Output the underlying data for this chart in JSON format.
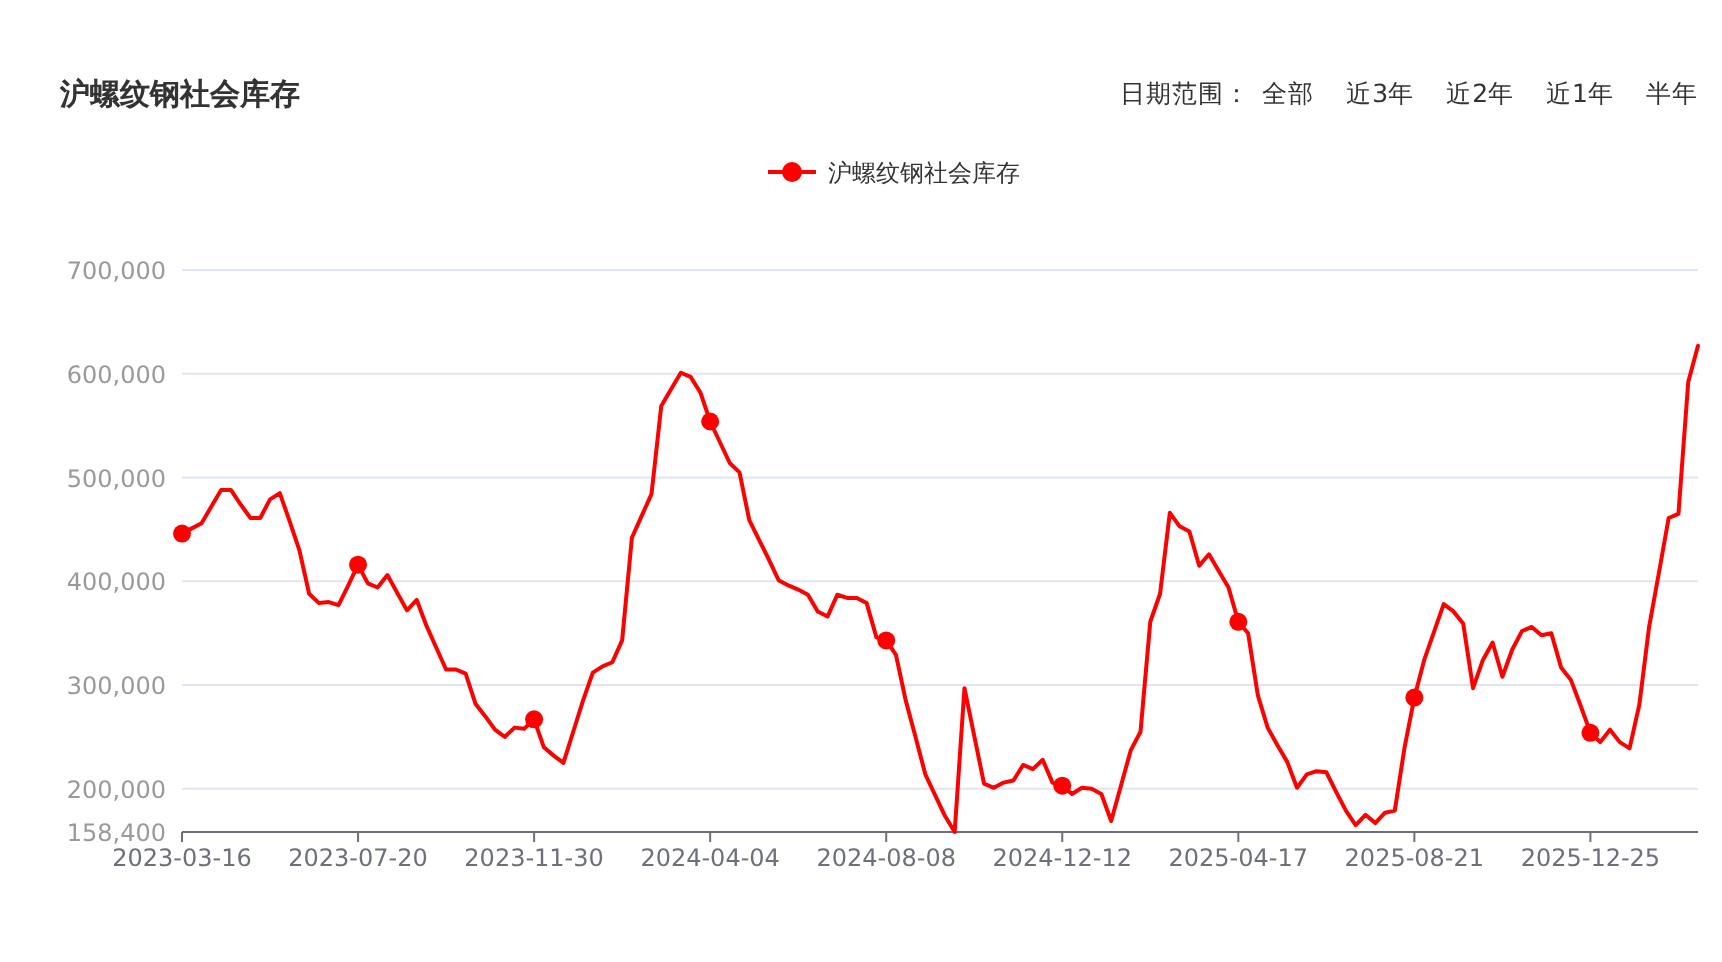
{
  "chart_data": {
    "type": "line",
    "title": "沪螺纹钢社会库存",
    "annotations": [
      "日期范围：",
      "全部",
      "近3年",
      "近2年",
      "近1年",
      "半年"
    ],
    "categories": [
      "2023-03-16",
      null,
      null,
      null,
      null,
      null,
      null,
      null,
      null,
      null,
      null,
      null,
      null,
      null,
      null,
      null,
      null,
      null,
      "2023-07-20",
      null,
      null,
      null,
      null,
      null,
      null,
      null,
      null,
      null,
      null,
      null,
      null,
      null,
      null,
      null,
      null,
      null,
      "2023-11-30",
      null,
      null,
      null,
      null,
      null,
      null,
      null,
      null,
      null,
      null,
      null,
      null,
      null,
      null,
      null,
      null,
      null,
      "2024-04-04",
      null,
      null,
      null,
      null,
      null,
      null,
      null,
      null,
      null,
      null,
      null,
      null,
      null,
      null,
      null,
      null,
      null,
      "2024-08-08",
      null,
      null,
      null,
      null,
      null,
      null,
      null,
      null,
      null,
      null,
      null,
      null,
      null,
      null,
      null,
      null,
      null,
      "2024-12-12",
      null,
      null,
      null,
      null,
      null,
      null,
      null,
      null,
      null,
      null,
      null,
      null,
      null,
      null,
      null,
      null,
      null,
      "2025-04-17",
      null,
      null,
      null,
      null,
      null,
      null,
      null,
      null,
      null,
      null,
      null,
      null,
      null,
      null,
      null,
      null,
      null,
      "2025-08-21",
      null,
      null,
      null,
      null,
      null,
      null,
      null,
      null,
      null,
      null,
      null,
      null,
      null,
      null,
      null,
      null,
      null,
      "2025-12-25",
      null,
      null,
      null,
      null,
      null,
      null,
      null,
      null,
      null,
      null,
      null
    ],
    "series": [
      {
        "type": "scatter",
        "color": "#ff0000",
        "marker": "circle",
        "values": [
          446000,
          null,
          null,
          null,
          null,
          null,
          null,
          null,
          null,
          null,
          null,
          null,
          null,
          null,
          null,
          null,
          null,
          null,
          416000,
          null,
          null,
          null,
          null,
          null,
          null,
          null,
          null,
          null,
          null,
          null,
          null,
          null,
          null,
          null,
          null,
          null,
          267000,
          null,
          null,
          null,
          null,
          null,
          null,
          null,
          null,
          null,
          null,
          null,
          null,
          null,
          null,
          null,
          null,
          null,
          554000,
          null,
          null,
          null,
          null,
          null,
          null,
          null,
          null,
          null,
          null,
          null,
          null,
          null,
          null,
          null,
          null,
          null,
          343000,
          null,
          null,
          null,
          null,
          null,
          null,
          null,
          null,
          null,
          null,
          null,
          null,
          null,
          null,
          null,
          null,
          null,
          203000,
          null,
          null,
          null,
          null,
          null,
          null,
          null,
          null,
          null,
          null,
          null,
          null,
          null,
          null,
          null,
          null,
          null,
          361000,
          null,
          null,
          null,
          null,
          null,
          null,
          null,
          null,
          null,
          null,
          null,
          null,
          null,
          null,
          null,
          null,
          null,
          288000,
          null,
          null,
          null,
          null,
          null,
          null,
          null,
          null,
          null,
          null,
          null,
          null,
          null,
          null,
          null,
          null,
          null,
          254000,
          null,
          null,
          null,
          null,
          null,
          null,
          null,
          null,
          null,
          null,
          null
        ]
      },
      {
        "name": "沪螺纹钢社会库存",
        "color": "#ff0000",
        "marker": "none",
        "values": [
          446000,
          451000,
          456000,
          472000,
          488000,
          488000,
          474000,
          461000,
          461000,
          479000,
          485000,
          458000,
          430000,
          388000,
          379000,
          380000,
          377000,
          396000,
          416000,
          398000,
          394000,
          406000,
          389000,
          372000,
          382000,
          357000,
          336000,
          315000,
          315000,
          311000,
          282000,
          270000,
          257000,
          250000,
          259000,
          258000,
          267000,
          240000,
          232000,
          225000,
          255000,
          285000,
          312000,
          318000,
          322000,
          343000,
          442000,
          463000,
          484000,
          569000,
          585000,
          601000,
          597000,
          582000,
          554000,
          534000,
          514000,
          505000,
          459000,
          440000,
          421000,
          401000,
          396000,
          392000,
          387000,
          371000,
          366000,
          387000,
          384000,
          384000,
          379000,
          346000,
          343000,
          329000,
          285000,
          250000,
          214000,
          194000,
          174000,
          158400,
          297000,
          251000,
          205000,
          201000,
          206000,
          208000,
          223000,
          219000,
          228000,
          206000,
          203000,
          195000,
          201000,
          200000,
          195000,
          169000,
          203000,
          237000,
          255000,
          361000,
          388000,
          466000,
          453000,
          448000,
          415000,
          426000,
          410000,
          394000,
          361000,
          350000,
          290000,
          259000,
          242000,
          226000,
          201000,
          214000,
          217000,
          216000,
          197000,
          179000,
          165000,
          175000,
          167000,
          177000,
          179000,
          240000,
          288000,
          324000,
          351000,
          378000,
          371000,
          359000,
          297000,
          324000,
          341000,
          308000,
          334000,
          352000,
          356000,
          348000,
          350000,
          317000,
          305000,
          280000,
          254000,
          245000,
          257000,
          245000,
          239000,
          281000,
          356000,
          408000,
          461000,
          465000,
          592000,
          627000
        ]
      }
    ],
    "ylim": [
      158400,
      700000
    ],
    "yticks": [
      {
        "value": 158400,
        "label": "158,400"
      },
      {
        "value": 200000,
        "label": "200,000"
      },
      {
        "value": 300000,
        "label": "300,000"
      },
      {
        "value": 400000,
        "label": "400,000"
      },
      {
        "value": 500000,
        "label": "500,000"
      },
      {
        "value": 600000,
        "label": "600,000"
      },
      {
        "value": 700000,
        "label": "700,000"
      }
    ],
    "grid": "y",
    "legend": "top",
    "line_style": "solid"
  }
}
